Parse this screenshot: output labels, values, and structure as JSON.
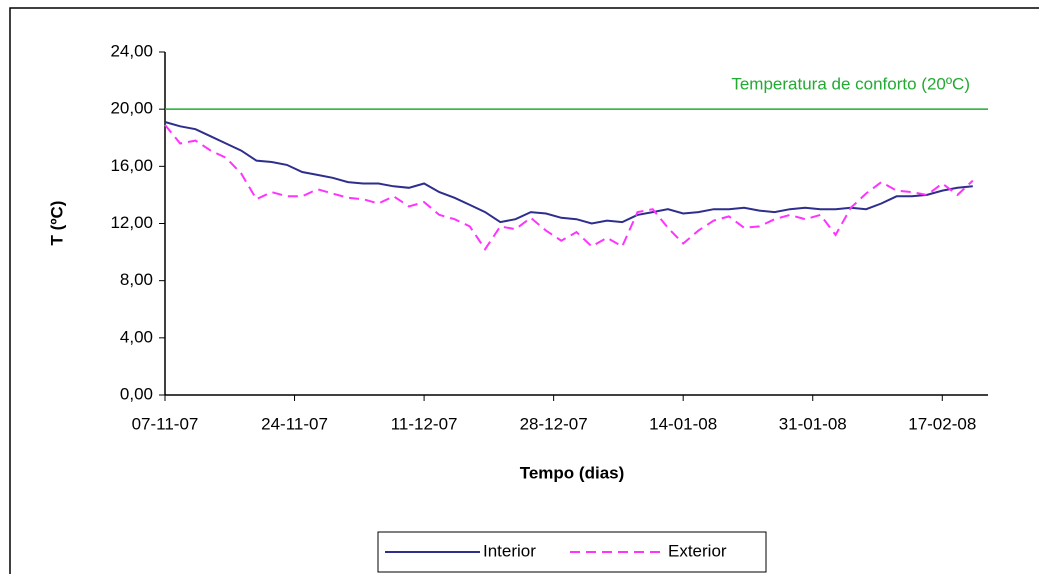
{
  "chart_data": {
    "type": "line",
    "x_label": "Tempo (dias)",
    "y_label": "T (ºC)",
    "x": [
      "07-11-07",
      "09-11-07",
      "11-11-07",
      "13-11-07",
      "15-11-07",
      "17-11-07",
      "19-11-07",
      "21-11-07",
      "23-11-07",
      "25-11-07",
      "27-11-07",
      "29-11-07",
      "01-12-07",
      "03-12-07",
      "05-12-07",
      "07-12-07",
      "09-12-07",
      "11-12-07",
      "13-12-07",
      "15-12-07",
      "17-12-07",
      "19-12-07",
      "21-12-07",
      "23-12-07",
      "25-12-07",
      "27-12-07",
      "29-12-07",
      "31-12-07",
      "02-01-08",
      "04-01-08",
      "06-01-08",
      "08-01-08",
      "10-01-08",
      "12-01-08",
      "14-01-08",
      "16-01-08",
      "18-01-08",
      "20-01-08",
      "22-01-08",
      "24-01-08",
      "26-01-08",
      "28-01-08",
      "30-01-08",
      "01-02-08",
      "03-02-08",
      "05-02-08",
      "07-02-08",
      "09-02-08",
      "11-02-08",
      "13-02-08",
      "15-02-08",
      "17-02-08",
      "19-02-08",
      "21-02-08"
    ],
    "series": [
      {
        "name": "Interior",
        "color": "#2e2e8c",
        "dash": "solid",
        "values": [
          19.1,
          18.8,
          18.6,
          18.1,
          17.6,
          17.1,
          16.4,
          16.3,
          16.1,
          15.6,
          15.4,
          15.2,
          14.9,
          14.8,
          14.8,
          14.6,
          14.5,
          14.8,
          14.2,
          13.8,
          13.3,
          12.8,
          12.1,
          12.3,
          12.8,
          12.7,
          12.4,
          12.3,
          12.0,
          12.2,
          12.1,
          12.6,
          12.8,
          13.0,
          12.7,
          12.8,
          13.0,
          13.0,
          13.1,
          12.9,
          12.8,
          13.0,
          13.1,
          13.0,
          13.0,
          13.1,
          13.0,
          13.4,
          13.9,
          13.9,
          14.0,
          14.3,
          14.5,
          14.6
        ]
      },
      {
        "name": "Exterior",
        "color": "#ff33ff",
        "dash": "dashed",
        "values": [
          18.9,
          17.6,
          17.8,
          17.1,
          16.6,
          15.5,
          13.7,
          14.2,
          13.9,
          13.9,
          14.4,
          14.1,
          13.8,
          13.7,
          13.4,
          13.9,
          13.2,
          13.5,
          12.6,
          12.3,
          11.8,
          10.2,
          11.8,
          11.6,
          12.4,
          11.5,
          10.8,
          11.4,
          10.4,
          11.0,
          10.4,
          12.8,
          13.0,
          11.7,
          10.6,
          11.5,
          12.2,
          12.5,
          11.7,
          11.8,
          12.3,
          12.6,
          12.3,
          12.6,
          11.2,
          13.1,
          14.1,
          14.9,
          14.3,
          14.2,
          14.0,
          14.8,
          14.0,
          15.0
        ]
      }
    ],
    "reference_line": {
      "value": 20,
      "label": "Temperatura de conforto (20ºC)",
      "color": "#22aa33"
    },
    "xlim": [
      "07-11-07",
      "23-02-08"
    ],
    "xticks": [
      "07-11-07",
      "24-11-07",
      "11-12-07",
      "28-12-07",
      "14-01-08",
      "31-01-08",
      "17-02-08"
    ],
    "ylim": [
      0,
      24
    ],
    "yticks": [
      {
        "value": 0,
        "label": "0,00"
      },
      {
        "value": 4,
        "label": "4,00"
      },
      {
        "value": 8,
        "label": "8,00"
      },
      {
        "value": 12,
        "label": "12,00"
      },
      {
        "value": 16,
        "label": "16,00"
      },
      {
        "value": 20,
        "label": "20,00"
      },
      {
        "value": 24,
        "label": "24,00"
      }
    ],
    "legend": "bottom"
  }
}
